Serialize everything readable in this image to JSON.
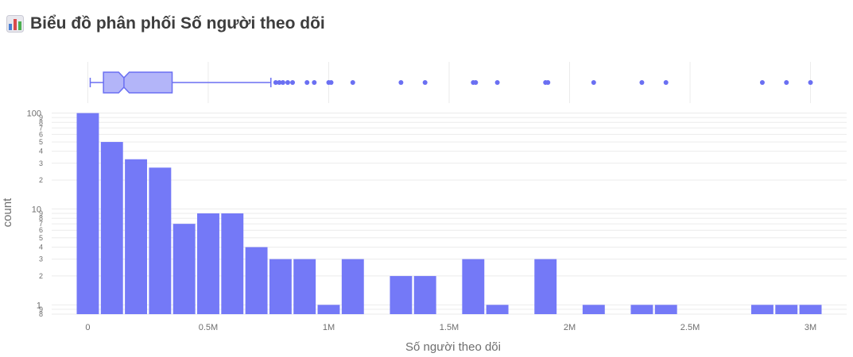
{
  "header": {
    "title": "Biểu đồ phân phối Số người theo dõi",
    "icon": "bar-chart-icon"
  },
  "colors": {
    "bar": "#7479f7",
    "box_fill": "#b3b5f9",
    "box_stroke": "#6a6ff2",
    "grid": "#ebebeb",
    "text": "#6e6e6e"
  },
  "chart_data": {
    "type": "bar",
    "title": "Biểu đồ phân phối Số người theo dõi",
    "xlabel": "Số người theo dõi",
    "ylabel": "count",
    "yscale": "log",
    "xlim": [
      -150000,
      3150000
    ],
    "ylim": [
      0.8,
      105
    ],
    "bin_width": 100000,
    "x_ticks": [
      {
        "value": 0,
        "label": "0"
      },
      {
        "value": 500000,
        "label": "0.5M"
      },
      {
        "value": 1000000,
        "label": "1M"
      },
      {
        "value": 1500000,
        "label": "1.5M"
      },
      {
        "value": 2000000,
        "label": "2M"
      },
      {
        "value": 2500000,
        "label": "2.5M"
      },
      {
        "value": 3000000,
        "label": "3M"
      }
    ],
    "y_major_ticks": [
      {
        "value": 1,
        "label": "1"
      },
      {
        "value": 10,
        "label": "10"
      },
      {
        "value": 100,
        "label": "100"
      }
    ],
    "y_minor_ticks": [
      {
        "value": 0.8,
        "label": "8"
      },
      {
        "value": 0.9,
        "label": "9"
      },
      {
        "value": 2,
        "label": "2"
      },
      {
        "value": 3,
        "label": "3"
      },
      {
        "value": 4,
        "label": "4"
      },
      {
        "value": 5,
        "label": "5"
      },
      {
        "value": 6,
        "label": "6"
      },
      {
        "value": 7,
        "label": "7"
      },
      {
        "value": 8,
        "label": "8"
      },
      {
        "value": 9,
        "label": "9"
      },
      {
        "value": 20,
        "label": "2"
      },
      {
        "value": 30,
        "label": "3"
      },
      {
        "value": 40,
        "label": "4"
      },
      {
        "value": 50,
        "label": "5"
      },
      {
        "value": 60,
        "label": "6"
      },
      {
        "value": 70,
        "label": "7"
      },
      {
        "value": 80,
        "label": "8"
      },
      {
        "value": 90,
        "label": "9"
      }
    ],
    "bins": [
      {
        "start": 0,
        "count": 100
      },
      {
        "start": 100000,
        "count": 50
      },
      {
        "start": 200000,
        "count": 33
      },
      {
        "start": 300000,
        "count": 27
      },
      {
        "start": 400000,
        "count": 7
      },
      {
        "start": 500000,
        "count": 9
      },
      {
        "start": 600000,
        "count": 9
      },
      {
        "start": 700000,
        "count": 4
      },
      {
        "start": 800000,
        "count": 3
      },
      {
        "start": 900000,
        "count": 3
      },
      {
        "start": 1000000,
        "count": 1
      },
      {
        "start": 1100000,
        "count": 3
      },
      {
        "start": 1300000,
        "count": 2
      },
      {
        "start": 1400000,
        "count": 2
      },
      {
        "start": 1600000,
        "count": 3
      },
      {
        "start": 1700000,
        "count": 1
      },
      {
        "start": 1900000,
        "count": 3
      },
      {
        "start": 2100000,
        "count": 1
      },
      {
        "start": 2300000,
        "count": 1
      },
      {
        "start": 2400000,
        "count": 1
      },
      {
        "start": 2800000,
        "count": 1
      },
      {
        "start": 2900000,
        "count": 1
      },
      {
        "start": 3000000,
        "count": 1
      }
    ],
    "boxplot": {
      "min": 10000,
      "q1": 65000,
      "median": 150000,
      "q3": 350000,
      "upper_fence": 760000,
      "notch_low": 128000,
      "notch_high": 172000,
      "outliers": [
        780000,
        795000,
        810000,
        830000,
        850000,
        910000,
        940000,
        1000000,
        1010000,
        1100000,
        1300000,
        1400000,
        1600000,
        1610000,
        1700000,
        1900000,
        1910000,
        2100000,
        2300000,
        2400000,
        2800000,
        2900000,
        3000000
      ]
    }
  }
}
